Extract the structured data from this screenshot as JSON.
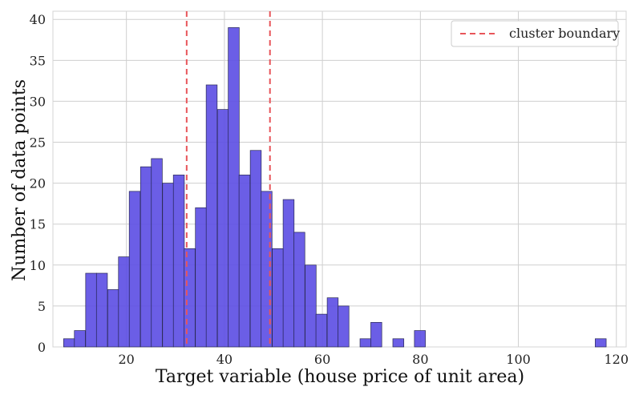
{
  "chart_data": {
    "type": "bar",
    "xlabel": "Target variable (house price of unit area)",
    "ylabel": "Number of data points",
    "xlim": [
      5,
      122
    ],
    "ylim": [
      0,
      41
    ],
    "xticks": [
      20,
      40,
      60,
      80,
      100,
      120
    ],
    "yticks": [
      0,
      5,
      10,
      15,
      20,
      25,
      30,
      35,
      40
    ],
    "grid": true,
    "legend": {
      "placement": "top-right",
      "entries": [
        "cluster boundary"
      ]
    },
    "bin_width": 2.24,
    "bins": [
      {
        "x": 8.3,
        "count": 1
      },
      {
        "x": 10.5,
        "count": 2
      },
      {
        "x": 12.8,
        "count": 9
      },
      {
        "x": 15.0,
        "count": 9
      },
      {
        "x": 17.3,
        "count": 7
      },
      {
        "x": 19.5,
        "count": 11
      },
      {
        "x": 21.7,
        "count": 19
      },
      {
        "x": 24.0,
        "count": 22
      },
      {
        "x": 26.2,
        "count": 23
      },
      {
        "x": 28.5,
        "count": 20
      },
      {
        "x": 30.7,
        "count": 21
      },
      {
        "x": 32.9,
        "count": 12
      },
      {
        "x": 35.2,
        "count": 17
      },
      {
        "x": 37.4,
        "count": 32
      },
      {
        "x": 39.7,
        "count": 29
      },
      {
        "x": 41.9,
        "count": 39
      },
      {
        "x": 44.1,
        "count": 21
      },
      {
        "x": 46.4,
        "count": 24
      },
      {
        "x": 48.6,
        "count": 19
      },
      {
        "x": 50.9,
        "count": 12
      },
      {
        "x": 53.1,
        "count": 18
      },
      {
        "x": 55.3,
        "count": 14
      },
      {
        "x": 57.6,
        "count": 10
      },
      {
        "x": 59.8,
        "count": 4
      },
      {
        "x": 62.1,
        "count": 6
      },
      {
        "x": 64.3,
        "count": 5
      },
      {
        "x": 68.8,
        "count": 1
      },
      {
        "x": 71.0,
        "count": 3
      },
      {
        "x": 75.5,
        "count": 1
      },
      {
        "x": 79.9,
        "count": 2
      },
      {
        "x": 116.8,
        "count": 1
      }
    ],
    "boundaries": [
      32.3,
      49.3
    ],
    "colors": {
      "bar": "#5b4de3",
      "boundary": "#e8555a"
    }
  }
}
